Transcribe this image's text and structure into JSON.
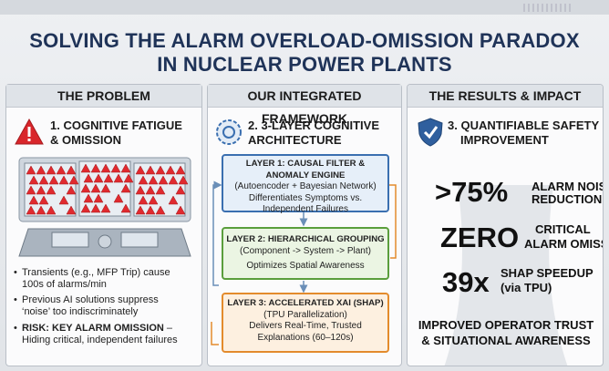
{
  "title": {
    "lines": [
      "SOLVING THE ALARM OVERLOAD-OMISSION PARADOX",
      "IN NUCLEAR POWER PLANTS"
    ]
  },
  "problem": {
    "header": "THE PROBLEM",
    "heading": [
      "1. COGNITIVE FATIGUE",
      "& OMISSION"
    ],
    "bullets": [
      [
        "Transients (e.g., MFP Trip) cause",
        "100s of alarms/min"
      ],
      [
        "Previous AI solutions suppress",
        "‘noise’ too indiscriminately"
      ]
    ],
    "risk": {
      "bold": "RISK: KEY ALARM OMISSION",
      "rest": " –",
      "line2": "Hiding critical, independent failures"
    }
  },
  "framework": {
    "header": "OUR INTEGRATED FRAMEWORK",
    "heading": [
      "2. 3-LAYER COGNITIVE",
      "ARCHITECTURE"
    ],
    "layers": [
      {
        "title": "LAYER 1: CAUSAL FILTER & ANOMALY ENGINE",
        "sub": "(Autoencoder + Bayesian Network)",
        "desc": [
          "Differentiates Symptoms vs.",
          "Independent Failures"
        ]
      },
      {
        "title": "LAYER 2: HIERARCHICAL GROUPING",
        "sub": "(Component -> System -> Plant)",
        "desc": [
          "Optimizes Spatial Awareness"
        ]
      },
      {
        "title": "LAYER 3: ACCELERATED XAI (SHAP)",
        "sub": "(TPU Parallelization)",
        "desc": [
          "Delivers Real-Time, Trusted",
          "Explanations (60–120s)"
        ]
      }
    ]
  },
  "results": {
    "header": "THE RESULTS & IMPACT",
    "heading": [
      "3. QUANTIFIABLE SAFETY",
      "IMPROVEMENT"
    ],
    "stats": [
      {
        "big": ">75%",
        "label": [
          "ALARM NOISE",
          "REDUCTION"
        ]
      },
      {
        "big": "ZERO",
        "label": [
          "CRITICAL",
          "ALARM OMISSIONS"
        ]
      },
      {
        "big": "39x",
        "label": [
          "SHAP SPEEDUP",
          "(via TPU)"
        ]
      }
    ],
    "footer": [
      "IMPROVED OPERATOR TRUST",
      "& SITUATIONAL AWARENESS"
    ]
  }
}
